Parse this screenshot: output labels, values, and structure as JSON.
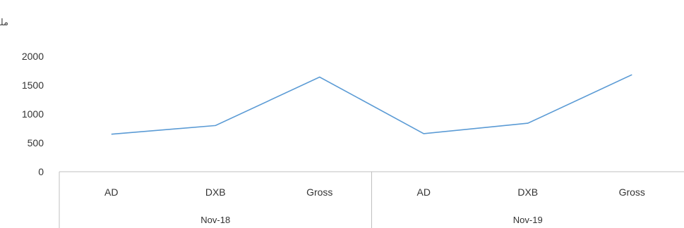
{
  "chart_data": {
    "type": "line",
    "unit_label": "مليار درهم",
    "ylim": [
      0,
      2000
    ],
    "yticks": [
      0,
      500,
      1000,
      1500,
      2000
    ],
    "grid": false,
    "groups": [
      {
        "label": "Nov-18",
        "categories": [
          "AD",
          "DXB",
          "Gross"
        ]
      },
      {
        "label": "Nov-19",
        "categories": [
          "AD",
          "DXB",
          "Gross"
        ]
      }
    ],
    "series": [
      {
        "color": "#5b9bd5",
        "values": [
          650,
          800,
          1640,
          660,
          840,
          1680
        ]
      }
    ]
  }
}
